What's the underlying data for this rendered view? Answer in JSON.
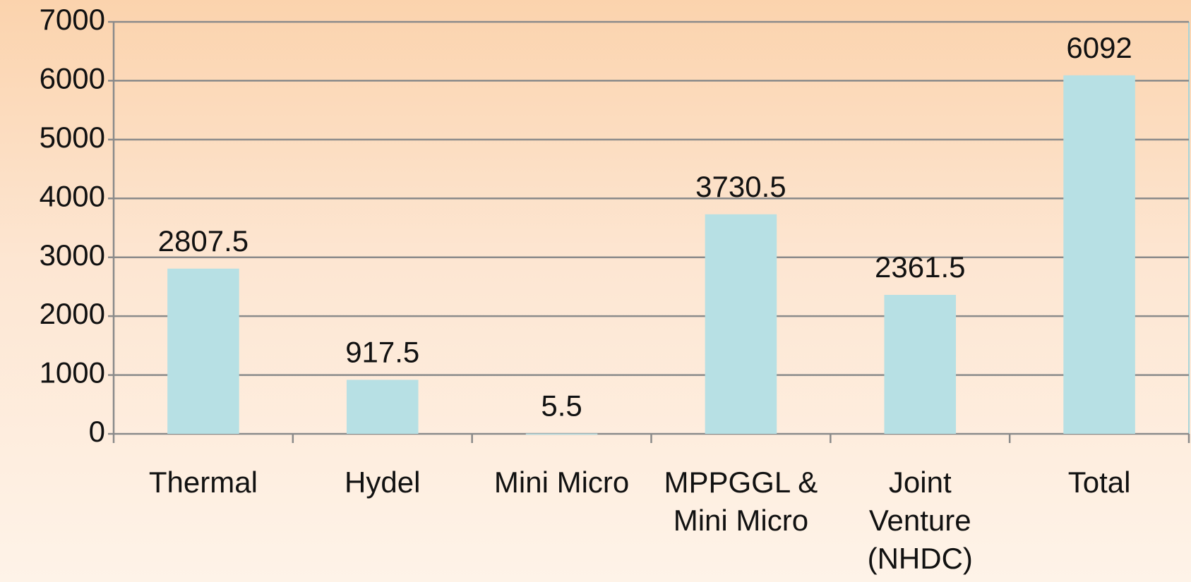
{
  "chart_data": {
    "type": "bar",
    "categories": [
      "Thermal",
      "Hydel",
      "Mini Micro",
      "MPPGGL & Mini Micro",
      "Joint Venture (NHDC)",
      "Total"
    ],
    "values": [
      2807.5,
      917.5,
      5.5,
      3730.5,
      2361.5,
      6092
    ],
    "color": "#b7e0e4",
    "ylim": [
      0,
      7000
    ],
    "yticks": [
      0,
      1000,
      2000,
      3000,
      4000,
      5000,
      6000,
      7000
    ],
    "grid": true
  }
}
